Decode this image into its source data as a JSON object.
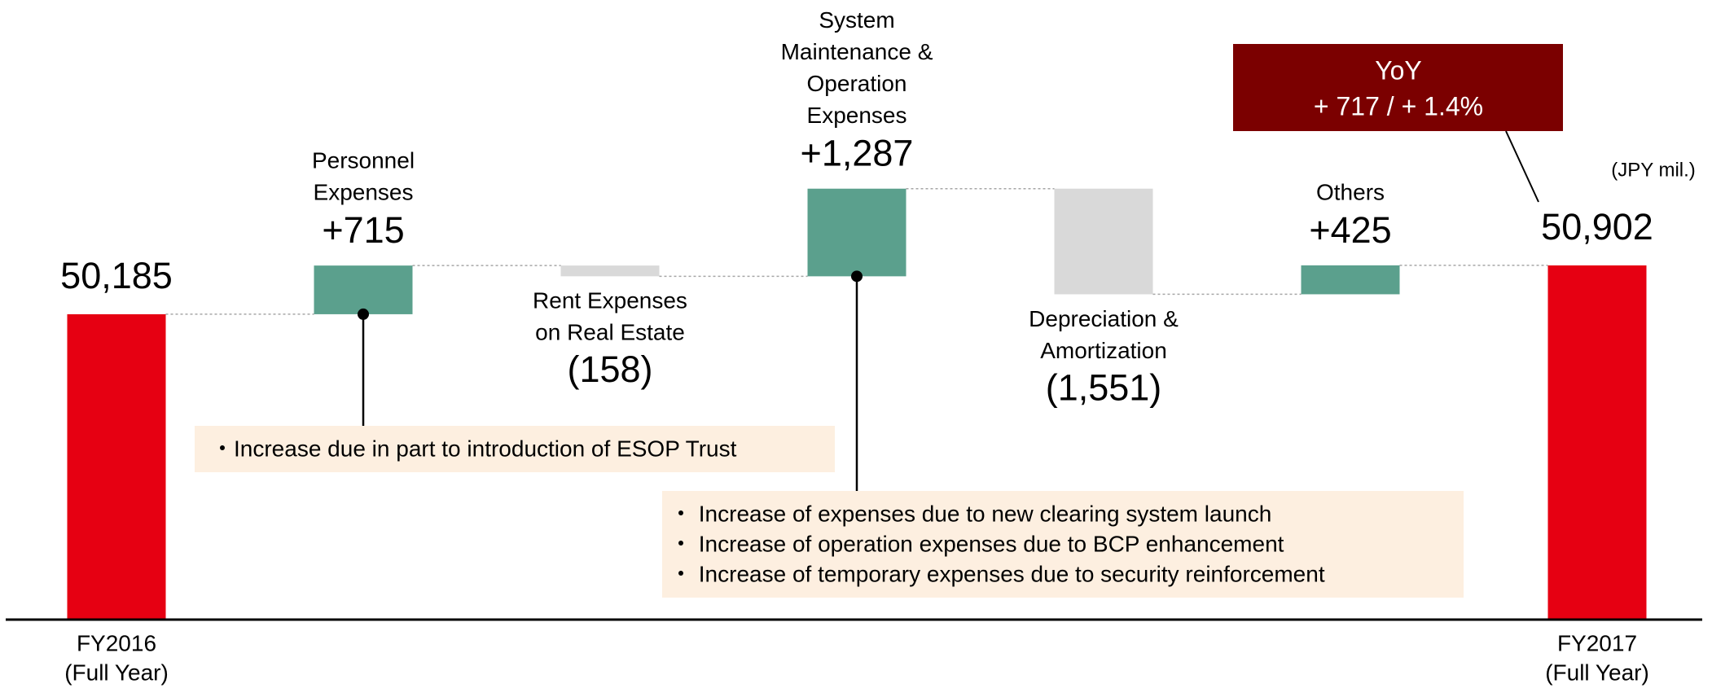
{
  "chart_data": {
    "type": "waterfall",
    "categories": [
      [
        "FY2016",
        "(Full Year)"
      ],
      [
        "Personnel",
        "Expenses"
      ],
      [
        "Rent Expenses",
        "on Real Estate"
      ],
      [
        "System",
        "Maintenance &",
        "Operation",
        "Expenses"
      ],
      [
        "Depreciation &",
        "Amortization"
      ],
      [
        "Others"
      ],
      [
        "FY2017",
        "(Full Year)"
      ]
    ],
    "values": [
      50185,
      715,
      -158,
      1287,
      -1551,
      425,
      50902
    ],
    "value_labels": [
      "50,185",
      "+715",
      "(158)",
      "+1,287",
      "(1,551)",
      "+425",
      "50,902"
    ],
    "bar_types": [
      "total",
      "increase",
      "decrease",
      "increase",
      "decrease",
      "increase",
      "total"
    ],
    "colors": {
      "total": "#e60012",
      "increase": "#5ba08d",
      "decrease": "#d9d9d9"
    },
    "ylim": [
      45700,
      54800
    ],
    "unit": "(JPY mil.)",
    "annotations": [
      {
        "lines": [
          "・Increase due in part to introduction of ESOP Trust"
        ]
      },
      {
        "lines": [
          "・ Increase of expenses due to new clearing system launch",
          "・ Increase of operation expenses due to BCP enhancement",
          "・ Increase of temporary expenses due to security reinforcement"
        ]
      }
    ],
    "yoy": {
      "title": "YoY",
      "text": "+ 717 / + 1.4%"
    }
  }
}
